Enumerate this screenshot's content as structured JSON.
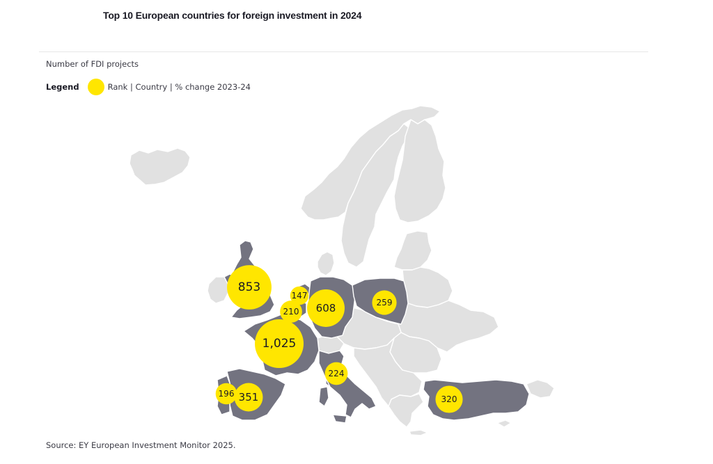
{
  "title": "Top 10 European countries for foreign investment in 2024",
  "subtitle": "Number of FDI projects",
  "legend": {
    "title": "Legend",
    "text": "Rank | Country | % change 2023-24",
    "color": "#ffe600"
  },
  "source": "Source: EY European Investment Monitor 2025.",
  "colors": {
    "highlight_country": "#737380",
    "other_country": "#e1e1e1",
    "bubble": "#ffe600"
  },
  "chart_data": {
    "type": "bubble-map",
    "region": "Europe",
    "points": [
      {
        "value": 1025,
        "label": "1,025"
      },
      {
        "value": 853,
        "label": "853"
      },
      {
        "value": 608,
        "label": "608"
      },
      {
        "value": 351,
        "label": "351"
      },
      {
        "value": 320,
        "label": "320"
      },
      {
        "value": 259,
        "label": "259"
      },
      {
        "value": 224,
        "label": "224"
      },
      {
        "value": 210,
        "label": "210"
      },
      {
        "value": 196,
        "label": "196"
      },
      {
        "value": 147,
        "label": "147"
      }
    ]
  }
}
